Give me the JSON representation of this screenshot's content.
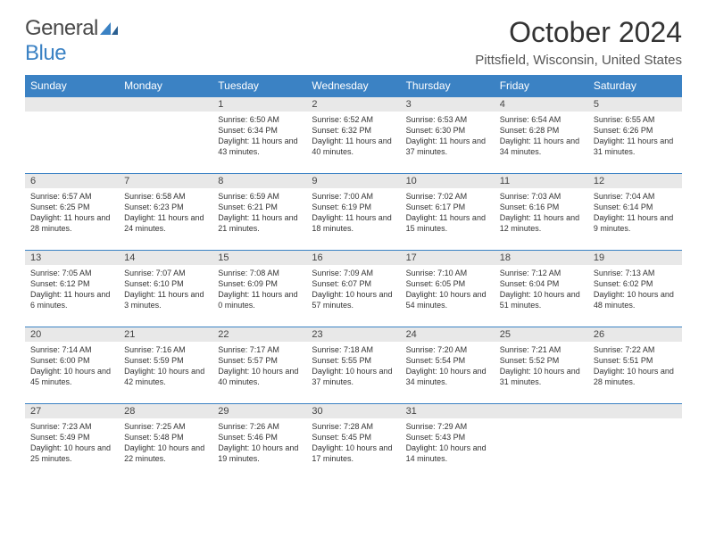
{
  "logo": {
    "text1": "General",
    "text2": "Blue"
  },
  "title": "October 2024",
  "location": "Pittsfield, Wisconsin, United States",
  "colors": {
    "header_bg": "#3b82c4",
    "header_text": "#ffffff",
    "daynum_bg": "#e8e8e8",
    "border": "#3b82c4",
    "text": "#333333",
    "logo_gray": "#4a4a4a",
    "logo_blue": "#3b82c4"
  },
  "fonts": {
    "title_size": 32,
    "location_size": 15,
    "th_size": 12,
    "daynum_size": 11,
    "content_size": 9
  },
  "weekdays": [
    "Sunday",
    "Monday",
    "Tuesday",
    "Wednesday",
    "Thursday",
    "Friday",
    "Saturday"
  ],
  "weeks": [
    [
      null,
      null,
      {
        "n": "1",
        "sr": "Sunrise: 6:50 AM",
        "ss": "Sunset: 6:34 PM",
        "dl": "Daylight: 11 hours and 43 minutes."
      },
      {
        "n": "2",
        "sr": "Sunrise: 6:52 AM",
        "ss": "Sunset: 6:32 PM",
        "dl": "Daylight: 11 hours and 40 minutes."
      },
      {
        "n": "3",
        "sr": "Sunrise: 6:53 AM",
        "ss": "Sunset: 6:30 PM",
        "dl": "Daylight: 11 hours and 37 minutes."
      },
      {
        "n": "4",
        "sr": "Sunrise: 6:54 AM",
        "ss": "Sunset: 6:28 PM",
        "dl": "Daylight: 11 hours and 34 minutes."
      },
      {
        "n": "5",
        "sr": "Sunrise: 6:55 AM",
        "ss": "Sunset: 6:26 PM",
        "dl": "Daylight: 11 hours and 31 minutes."
      }
    ],
    [
      {
        "n": "6",
        "sr": "Sunrise: 6:57 AM",
        "ss": "Sunset: 6:25 PM",
        "dl": "Daylight: 11 hours and 28 minutes."
      },
      {
        "n": "7",
        "sr": "Sunrise: 6:58 AM",
        "ss": "Sunset: 6:23 PM",
        "dl": "Daylight: 11 hours and 24 minutes."
      },
      {
        "n": "8",
        "sr": "Sunrise: 6:59 AM",
        "ss": "Sunset: 6:21 PM",
        "dl": "Daylight: 11 hours and 21 minutes."
      },
      {
        "n": "9",
        "sr": "Sunrise: 7:00 AM",
        "ss": "Sunset: 6:19 PM",
        "dl": "Daylight: 11 hours and 18 minutes."
      },
      {
        "n": "10",
        "sr": "Sunrise: 7:02 AM",
        "ss": "Sunset: 6:17 PM",
        "dl": "Daylight: 11 hours and 15 minutes."
      },
      {
        "n": "11",
        "sr": "Sunrise: 7:03 AM",
        "ss": "Sunset: 6:16 PM",
        "dl": "Daylight: 11 hours and 12 minutes."
      },
      {
        "n": "12",
        "sr": "Sunrise: 7:04 AM",
        "ss": "Sunset: 6:14 PM",
        "dl": "Daylight: 11 hours and 9 minutes."
      }
    ],
    [
      {
        "n": "13",
        "sr": "Sunrise: 7:05 AM",
        "ss": "Sunset: 6:12 PM",
        "dl": "Daylight: 11 hours and 6 minutes."
      },
      {
        "n": "14",
        "sr": "Sunrise: 7:07 AM",
        "ss": "Sunset: 6:10 PM",
        "dl": "Daylight: 11 hours and 3 minutes."
      },
      {
        "n": "15",
        "sr": "Sunrise: 7:08 AM",
        "ss": "Sunset: 6:09 PM",
        "dl": "Daylight: 11 hours and 0 minutes."
      },
      {
        "n": "16",
        "sr": "Sunrise: 7:09 AM",
        "ss": "Sunset: 6:07 PM",
        "dl": "Daylight: 10 hours and 57 minutes."
      },
      {
        "n": "17",
        "sr": "Sunrise: 7:10 AM",
        "ss": "Sunset: 6:05 PM",
        "dl": "Daylight: 10 hours and 54 minutes."
      },
      {
        "n": "18",
        "sr": "Sunrise: 7:12 AM",
        "ss": "Sunset: 6:04 PM",
        "dl": "Daylight: 10 hours and 51 minutes."
      },
      {
        "n": "19",
        "sr": "Sunrise: 7:13 AM",
        "ss": "Sunset: 6:02 PM",
        "dl": "Daylight: 10 hours and 48 minutes."
      }
    ],
    [
      {
        "n": "20",
        "sr": "Sunrise: 7:14 AM",
        "ss": "Sunset: 6:00 PM",
        "dl": "Daylight: 10 hours and 45 minutes."
      },
      {
        "n": "21",
        "sr": "Sunrise: 7:16 AM",
        "ss": "Sunset: 5:59 PM",
        "dl": "Daylight: 10 hours and 42 minutes."
      },
      {
        "n": "22",
        "sr": "Sunrise: 7:17 AM",
        "ss": "Sunset: 5:57 PM",
        "dl": "Daylight: 10 hours and 40 minutes."
      },
      {
        "n": "23",
        "sr": "Sunrise: 7:18 AM",
        "ss": "Sunset: 5:55 PM",
        "dl": "Daylight: 10 hours and 37 minutes."
      },
      {
        "n": "24",
        "sr": "Sunrise: 7:20 AM",
        "ss": "Sunset: 5:54 PM",
        "dl": "Daylight: 10 hours and 34 minutes."
      },
      {
        "n": "25",
        "sr": "Sunrise: 7:21 AM",
        "ss": "Sunset: 5:52 PM",
        "dl": "Daylight: 10 hours and 31 minutes."
      },
      {
        "n": "26",
        "sr": "Sunrise: 7:22 AM",
        "ss": "Sunset: 5:51 PM",
        "dl": "Daylight: 10 hours and 28 minutes."
      }
    ],
    [
      {
        "n": "27",
        "sr": "Sunrise: 7:23 AM",
        "ss": "Sunset: 5:49 PM",
        "dl": "Daylight: 10 hours and 25 minutes."
      },
      {
        "n": "28",
        "sr": "Sunrise: 7:25 AM",
        "ss": "Sunset: 5:48 PM",
        "dl": "Daylight: 10 hours and 22 minutes."
      },
      {
        "n": "29",
        "sr": "Sunrise: 7:26 AM",
        "ss": "Sunset: 5:46 PM",
        "dl": "Daylight: 10 hours and 19 minutes."
      },
      {
        "n": "30",
        "sr": "Sunrise: 7:28 AM",
        "ss": "Sunset: 5:45 PM",
        "dl": "Daylight: 10 hours and 17 minutes."
      },
      {
        "n": "31",
        "sr": "Sunrise: 7:29 AM",
        "ss": "Sunset: 5:43 PM",
        "dl": "Daylight: 10 hours and 14 minutes."
      },
      null,
      null
    ]
  ]
}
